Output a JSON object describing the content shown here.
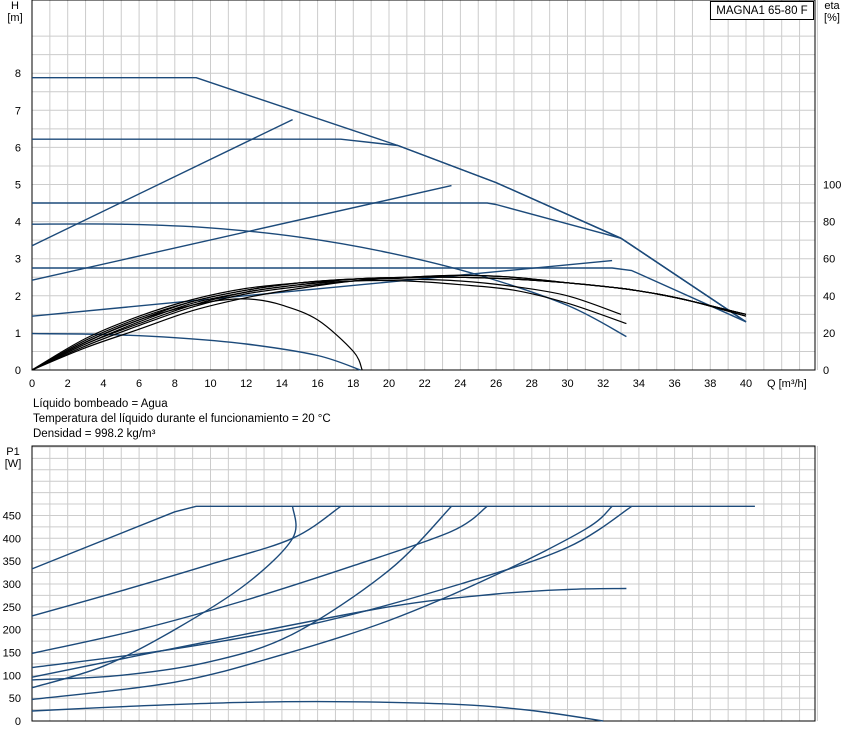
{
  "colors": {
    "blue": "#1c4a7a",
    "black": "#000000",
    "grid": "#cccccc",
    "frame": "#000000"
  },
  "model": "MAGNA1 65-80 F",
  "notes": [
    "Líquido bombeado = Agua",
    "Temperatura del líquido durante el funcionamiento = 20 °C",
    "Densidad = 998.2 kg/m³"
  ],
  "chart_data": [
    {
      "type": "line",
      "title": "",
      "xlabel": "Q [m³/h]",
      "ylabel_left": "H\n[m]",
      "ylabel_right": "eta\n[%]",
      "xlim": [
        0,
        44
      ],
      "ylim_left": [
        0,
        9.0
      ],
      "ylim_right": [
        0,
        180
      ],
      "xticks": [
        "0",
        "2",
        "4",
        "6",
        "8",
        "10",
        "12",
        "14",
        "16",
        "18",
        "20",
        "22",
        "24",
        "26",
        "28",
        "30",
        "32",
        "34",
        "36",
        "38",
        "40"
      ],
      "yticks_left": [
        "0",
        "1",
        "2",
        "3",
        "4",
        "5",
        "6",
        "7",
        "8"
      ],
      "yticks_right": [
        "0",
        "20",
        "40",
        "60",
        "80",
        "100"
      ],
      "grid": true,
      "head_curves": [
        {
          "color": "blue",
          "points": [
            [
              0,
              7.88
            ],
            [
              9.2,
              7.88
            ],
            [
              20.5,
              6.05
            ],
            [
              26,
              5.05
            ],
            [
              33,
              3.55
            ],
            [
              40,
              1.3
            ]
          ]
        },
        {
          "color": "blue",
          "points": [
            [
              0,
              6.22
            ],
            [
              17.3,
              6.22
            ],
            [
              20.5,
              6.05
            ],
            [
              26,
              5.05
            ],
            [
              33,
              3.55
            ],
            [
              40,
              1.3
            ]
          ]
        },
        {
          "color": "blue",
          "points": [
            [
              0,
              4.5
            ],
            [
              25.5,
              4.5
            ],
            [
              26,
              4.46
            ],
            [
              33,
              3.55
            ],
            [
              40,
              1.3
            ]
          ]
        },
        {
          "color": "blue",
          "points": [
            [
              0,
              2.75
            ],
            [
              32.5,
              2.75
            ],
            [
              33.6,
              2.68
            ],
            [
              40,
              1.3
            ]
          ]
        },
        {
          "color": "blue",
          "points": [
            [
              0,
              3.93
            ],
            [
              5,
              3.93
            ],
            [
              10,
              3.83
            ],
            [
              15,
              3.58
            ],
            [
              20,
              3.16
            ],
            [
              25,
              2.56
            ],
            [
              30,
              1.74
            ],
            [
              33.3,
              0.9
            ]
          ]
        },
        {
          "color": "blue",
          "points": [
            [
              0,
              0.98
            ],
            [
              4,
              0.96
            ],
            [
              8,
              0.87
            ],
            [
              12,
              0.7
            ],
            [
              16,
              0.39
            ],
            [
              18.4,
              0.0
            ]
          ]
        },
        {
          "color": "blue",
          "points": [
            [
              0,
              3.35
            ],
            [
              14.6,
              6.75
            ]
          ]
        },
        {
          "color": "blue",
          "points": [
            [
              0,
              2.42
            ],
            [
              23.5,
              4.97
            ]
          ]
        },
        {
          "color": "blue",
          "points": [
            [
              0,
              1.45
            ],
            [
              32.5,
              2.95
            ]
          ]
        }
      ],
      "eta_curves": [
        {
          "color": "black",
          "points": [
            [
              0,
              0
            ],
            [
              3,
              17
            ],
            [
              6,
              29
            ],
            [
              9,
              38
            ],
            [
              12,
              44
            ],
            [
              15,
              47
            ],
            [
              18,
              49
            ],
            [
              21,
              50
            ],
            [
              24,
              50
            ],
            [
              27,
              49
            ],
            [
              30,
              47
            ],
            [
              33,
              44
            ],
            [
              35,
              41
            ],
            [
              37,
              37
            ],
            [
              40,
              30
            ]
          ]
        },
        {
          "color": "black",
          "points": [
            [
              0,
              0
            ],
            [
              3,
              16
            ],
            [
              6,
              28
            ],
            [
              9,
              37
            ],
            [
              12,
              43
            ],
            [
              15,
              47
            ],
            [
              18,
              49
            ],
            [
              21,
              50
            ],
            [
              24,
              50
            ],
            [
              27,
              49
            ],
            [
              30,
              47
            ],
            [
              33,
              44
            ],
            [
              35,
              41
            ],
            [
              37,
              37
            ],
            [
              40,
              30
            ]
          ]
        },
        {
          "color": "black",
          "points": [
            [
              0,
              0
            ],
            [
              3,
              14
            ],
            [
              6,
              26
            ],
            [
              9,
              36
            ],
            [
              12,
              42
            ],
            [
              15,
              46
            ],
            [
              18,
              49
            ],
            [
              21,
              50
            ],
            [
              24,
              50
            ],
            [
              27,
              49
            ],
            [
              30,
              47
            ],
            [
              33,
              44
            ],
            [
              35,
              41
            ],
            [
              37,
              37
            ],
            [
              40,
              30
            ]
          ]
        },
        {
          "color": "black",
          "points": [
            [
              0,
              0
            ],
            [
              3,
              13
            ],
            [
              6,
              24
            ],
            [
              9,
              34
            ],
            [
              12,
              41
            ],
            [
              15,
              45
            ],
            [
              18,
              48
            ],
            [
              21,
              50
            ],
            [
              24,
              51
            ],
            [
              27,
              50
            ],
            [
              30,
              47
            ],
            [
              33,
              44
            ],
            [
              35,
              41
            ],
            [
              37,
              37
            ],
            [
              40,
              29
            ]
          ]
        },
        {
          "color": "black",
          "points": [
            [
              0,
              0
            ],
            [
              3,
              12
            ],
            [
              6,
              22
            ],
            [
              9,
              32
            ],
            [
              12,
              39
            ],
            [
              15,
              44
            ],
            [
              18,
              48
            ],
            [
              21,
              50
            ],
            [
              24,
              51
            ],
            [
              27,
              50
            ],
            [
              30,
              47
            ],
            [
              33,
              44
            ],
            [
              35,
              41
            ],
            [
              37,
              37
            ],
            [
              40,
              29
            ]
          ]
        },
        {
          "color": "black",
          "points": [
            [
              0,
              0
            ],
            [
              3,
              15
            ],
            [
              6,
              27
            ],
            [
              9,
              37
            ],
            [
              12,
              43
            ],
            [
              15,
              47
            ],
            [
              18,
              49
            ],
            [
              21,
              49
            ],
            [
              24,
              48
            ],
            [
              27,
              45
            ],
            [
              30,
              40
            ],
            [
              33,
              30
            ]
          ]
        },
        {
          "color": "black",
          "points": [
            [
              0,
              0
            ],
            [
              3,
              14
            ],
            [
              6,
              25
            ],
            [
              9,
              35
            ],
            [
              12,
              42
            ],
            [
              15,
              46
            ],
            [
              18,
              48
            ],
            [
              21,
              48
            ],
            [
              24,
              46
            ],
            [
              27,
              43
            ],
            [
              30,
              36
            ],
            [
              33.3,
              25
            ]
          ]
        },
        {
          "color": "black",
          "points": [
            [
              0,
              0
            ],
            [
              3,
              15
            ],
            [
              6,
              27
            ],
            [
              9,
              35
            ],
            [
              11,
              38
            ],
            [
              12.5,
              38
            ],
            [
              14,
              35
            ],
            [
              16,
              27
            ],
            [
              18,
              10
            ],
            [
              18.5,
              0
            ]
          ]
        }
      ]
    },
    {
      "type": "line",
      "title": "",
      "xlabel": "",
      "ylabel": "P1\n[W]",
      "xlim": [
        0,
        44
      ],
      "ylim": [
        0,
        500
      ],
      "yticks": [
        "0",
        "50",
        "100",
        "150",
        "200",
        "250",
        "300",
        "350",
        "400",
        "450"
      ],
      "grid": true,
      "power_curves": [
        {
          "color": "blue",
          "points": [
            [
              0,
              333
            ],
            [
              8,
              458
            ],
            [
              9.2,
              470
            ],
            [
              40.5,
              470
            ]
          ]
        },
        {
          "color": "blue",
          "points": [
            [
              0,
              230
            ],
            [
              5,
              285
            ],
            [
              10,
              343
            ],
            [
              14.6,
              400
            ],
            [
              17.3,
              470
            ]
          ]
        },
        {
          "color": "blue",
          "points": [
            [
              0,
              148
            ],
            [
              6,
              200
            ],
            [
              12,
              265
            ],
            [
              18,
              340
            ],
            [
              23.5,
              415
            ],
            [
              25.5,
              470
            ]
          ]
        },
        {
          "color": "blue",
          "points": [
            [
              0,
              117
            ],
            [
              8,
              158
            ],
            [
              16,
              215
            ],
            [
              24,
              300
            ],
            [
              30,
              380
            ],
            [
              33.6,
              470
            ]
          ]
        },
        {
          "color": "blue",
          "points": [
            [
              0,
              90
            ],
            [
              5,
              100
            ],
            [
              10,
              130
            ],
            [
              14.6,
              190
            ],
            [
              20,
              330
            ],
            [
              23.5,
              470
            ]
          ]
        },
        {
          "color": "blue",
          "points": [
            [
              0,
              73
            ],
            [
              4,
              120
            ],
            [
              8,
              200
            ],
            [
              12,
              300
            ],
            [
              14.6,
              400
            ],
            [
              14.6,
              470
            ]
          ]
        },
        {
          "color": "blue",
          "points": [
            [
              0,
              47
            ],
            [
              8,
              85
            ],
            [
              14,
              145
            ],
            [
              20,
              220
            ],
            [
              26,
              320
            ],
            [
              31,
              420
            ],
            [
              32.5,
              470
            ]
          ]
        },
        {
          "color": "blue",
          "points": [
            [
              0,
              96
            ],
            [
              10,
              175
            ],
            [
              20,
              250
            ],
            [
              26,
              278
            ],
            [
              30,
              288
            ],
            [
              33.3,
              290
            ]
          ]
        },
        {
          "color": "blue",
          "points": [
            [
              0,
              22
            ],
            [
              6,
              33
            ],
            [
              12,
              41
            ],
            [
              18,
              42
            ],
            [
              24,
              36
            ],
            [
              28,
              23
            ],
            [
              32,
              0
            ]
          ]
        }
      ]
    }
  ]
}
